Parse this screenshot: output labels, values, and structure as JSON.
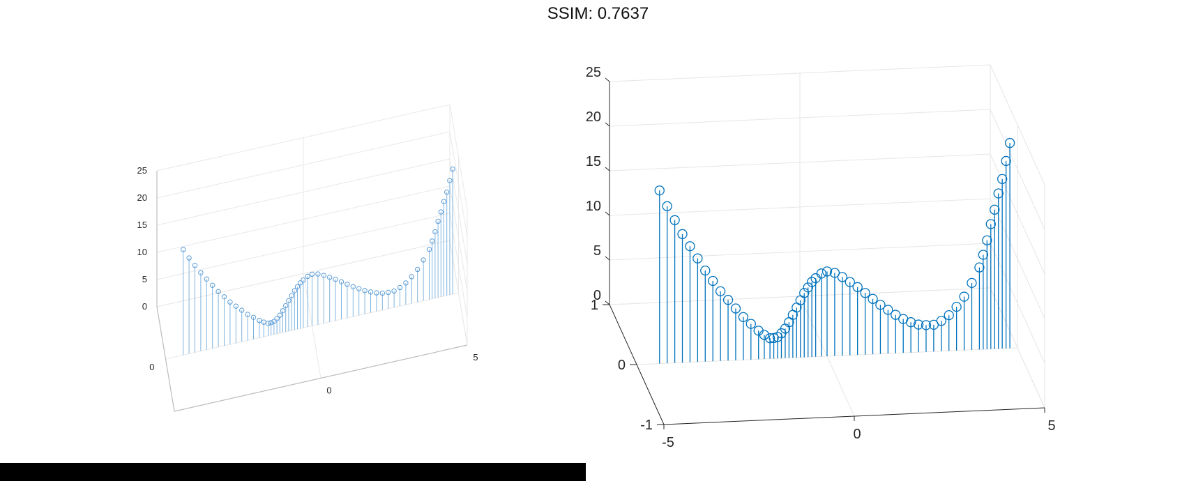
{
  "header": {
    "title": "SSIM: 0.7637"
  },
  "colors": {
    "series": "#0072BD",
    "grid": "#e6e6e6",
    "axis": "#262626",
    "bar": "#000000"
  },
  "chart_data": [
    {
      "type": "stem3",
      "panel": "left",
      "title": "",
      "xlabel": "",
      "ylabel": "",
      "zlabel": "",
      "x_ticks": [
        "0",
        "5"
      ],
      "y_ticks": [
        "0"
      ],
      "z_ticks": [
        "0",
        "5",
        "10",
        "15",
        "20",
        "25"
      ],
      "xlim": [
        -5,
        5
      ],
      "ylim": [
        -1,
        1
      ],
      "zlim": [
        0,
        25
      ],
      "grid": true,
      "marker": "circle"
    },
    {
      "type": "stem3",
      "panel": "right",
      "title": "",
      "xlabel": "",
      "ylabel": "",
      "zlabel": "",
      "x_ticks": [
        "-5",
        "0",
        "5"
      ],
      "y_ticks": [
        "-1",
        "0",
        "1"
      ],
      "z_ticks": [
        "0",
        "5",
        "10",
        "15",
        "20",
        "25"
      ],
      "xlim": [
        -5,
        5
      ],
      "ylim": [
        -1,
        1
      ],
      "zlim": [
        0,
        25
      ],
      "grid": true,
      "marker": "circle",
      "series": [
        {
          "points": [
            {
              "x": -4.4,
              "z": 19.4
            },
            {
              "x": -4.2,
              "z": 17.6
            },
            {
              "x": -4.0,
              "z": 16.0
            },
            {
              "x": -3.8,
              "z": 14.4
            },
            {
              "x": -3.6,
              "z": 13.0
            },
            {
              "x": -3.4,
              "z": 11.6
            },
            {
              "x": -3.2,
              "z": 10.2
            },
            {
              "x": -3.0,
              "z": 9.0
            },
            {
              "x": -2.8,
              "z": 7.8
            },
            {
              "x": -2.6,
              "z": 6.8
            },
            {
              "x": -2.4,
              "z": 5.8
            },
            {
              "x": -2.2,
              "z": 4.8
            },
            {
              "x": -2.0,
              "z": 4.0
            },
            {
              "x": -1.8,
              "z": 3.2
            },
            {
              "x": -1.65,
              "z": 2.7
            },
            {
              "x": -1.5,
              "z": 2.3
            },
            {
              "x": -1.4,
              "z": 2.3
            },
            {
              "x": -1.3,
              "z": 2.4
            },
            {
              "x": -1.2,
              "z": 2.8
            },
            {
              "x": -1.1,
              "z": 3.3
            },
            {
              "x": -1.0,
              "z": 4.0
            },
            {
              "x": -0.9,
              "z": 4.8
            },
            {
              "x": -0.8,
              "z": 5.6
            },
            {
              "x": -0.7,
              "z": 6.4
            },
            {
              "x": -0.6,
              "z": 7.2
            },
            {
              "x": -0.5,
              "z": 7.8
            },
            {
              "x": -0.4,
              "z": 8.4
            },
            {
              "x": -0.3,
              "z": 8.8
            },
            {
              "x": -0.15,
              "z": 9.3
            },
            {
              "x": 0.0,
              "z": 9.5
            },
            {
              "x": 0.2,
              "z": 9.3
            },
            {
              "x": 0.4,
              "z": 8.8
            },
            {
              "x": 0.6,
              "z": 8.2
            },
            {
              "x": 0.8,
              "z": 7.6
            },
            {
              "x": 1.0,
              "z": 6.9
            },
            {
              "x": 1.2,
              "z": 6.2
            },
            {
              "x": 1.4,
              "z": 5.5
            },
            {
              "x": 1.6,
              "z": 4.9
            },
            {
              "x": 1.8,
              "z": 4.3
            },
            {
              "x": 2.0,
              "z": 3.8
            },
            {
              "x": 2.2,
              "z": 3.4
            },
            {
              "x": 2.4,
              "z": 3.1
            },
            {
              "x": 2.6,
              "z": 3.0
            },
            {
              "x": 2.8,
              "z": 3.0
            },
            {
              "x": 3.0,
              "z": 3.4
            },
            {
              "x": 3.2,
              "z": 4.0
            },
            {
              "x": 3.4,
              "z": 4.9
            },
            {
              "x": 3.6,
              "z": 6.0
            },
            {
              "x": 3.8,
              "z": 7.5
            },
            {
              "x": 4.0,
              "z": 9.2
            },
            {
              "x": 4.1,
              "z": 10.6
            },
            {
              "x": 4.2,
              "z": 12.2
            },
            {
              "x": 4.3,
              "z": 14.0
            },
            {
              "x": 4.4,
              "z": 15.6
            },
            {
              "x": 4.5,
              "z": 17.4
            },
            {
              "x": 4.6,
              "z": 19.0
            },
            {
              "x": 4.7,
              "z": 21.0
            },
            {
              "x": 4.8,
              "z": 23.0
            }
          ]
        }
      ]
    }
  ]
}
